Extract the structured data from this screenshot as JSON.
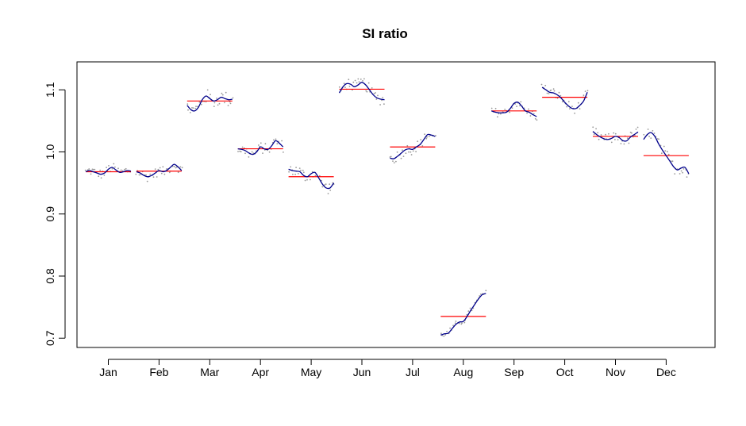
{
  "chart_data": {
    "type": "line",
    "title": "SI ratio",
    "xlabel": "",
    "ylabel": "",
    "ylim": [
      0.685,
      1.145
    ],
    "yticks": [
      0.7,
      0.8,
      0.9,
      1.0,
      1.1
    ],
    "ytick_labels": [
      "0.7",
      "0.8",
      "0.9",
      "1.0",
      "1.1"
    ],
    "categories": [
      "Jan",
      "Feb",
      "Mar",
      "Apr",
      "May",
      "Jun",
      "Jul",
      "Aug",
      "Sep",
      "Oct",
      "Nov",
      "Dec"
    ],
    "grid": false,
    "colors": {
      "mean_line": "#ff0000",
      "smooth_line": "#00008b",
      "points": "#999999"
    },
    "means": [
      0.968,
      0.969,
      1.082,
      1.005,
      0.96,
      1.101,
      1.008,
      0.735,
      1.066,
      1.088,
      1.025,
      0.994
    ],
    "smooth": [
      [
        0.968,
        0.97,
        0.968,
        0.966,
        0.964,
        0.966,
        0.972,
        0.975,
        0.971,
        0.967,
        0.968,
        0.97,
        0.969
      ],
      [
        0.968,
        0.966,
        0.962,
        0.96,
        0.962,
        0.966,
        0.97,
        0.968,
        0.97,
        0.975,
        0.98,
        0.976,
        0.97
      ],
      [
        1.075,
        1.068,
        1.066,
        1.072,
        1.084,
        1.09,
        1.086,
        1.082,
        1.084,
        1.088,
        1.086,
        1.084,
        1.085
      ],
      [
        1.005,
        1.004,
        1.002,
        0.998,
        0.996,
        1.0,
        1.008,
        1.005,
        1.004,
        1.01,
        1.018,
        1.014,
        1.008
      ],
      [
        0.972,
        0.97,
        0.969,
        0.968,
        0.962,
        0.96,
        0.965,
        0.967,
        0.958,
        0.948,
        0.942,
        0.942,
        0.95
      ],
      [
        1.095,
        1.105,
        1.11,
        1.109,
        1.105,
        1.108,
        1.112,
        1.108,
        1.1,
        1.092,
        1.087,
        1.085,
        1.084
      ],
      [
        0.99,
        0.989,
        0.993,
        0.998,
        1.003,
        1.005,
        1.004,
        1.008,
        1.012,
        1.02,
        1.028,
        1.027,
        1.025
      ],
      [
        0.705,
        0.707,
        0.708,
        0.715,
        0.722,
        0.726,
        0.727,
        0.735,
        0.745,
        0.754,
        0.763,
        0.77,
        0.772
      ],
      [
        1.066,
        1.064,
        1.063,
        1.063,
        1.064,
        1.07,
        1.078,
        1.08,
        1.074,
        1.066,
        1.064,
        1.06,
        1.057
      ],
      [
        1.104,
        1.1,
        1.096,
        1.095,
        1.092,
        1.087,
        1.08,
        1.074,
        1.07,
        1.07,
        1.075,
        1.082,
        1.096
      ],
      [
        1.033,
        1.028,
        1.024,
        1.021,
        1.02,
        1.022,
        1.025,
        1.023,
        1.018,
        1.018,
        1.024,
        1.028,
        1.032
      ],
      [
        1.02,
        1.028,
        1.031,
        1.025,
        1.013,
        1.003,
        0.994,
        0.985,
        0.976,
        0.971,
        0.974,
        0.975,
        0.965
      ]
    ],
    "noise": [
      0.008,
      0.008,
      0.012,
      0.009,
      0.01,
      0.01,
      0.009,
      0.005,
      0.007,
      0.008,
      0.009,
      0.01
    ]
  }
}
